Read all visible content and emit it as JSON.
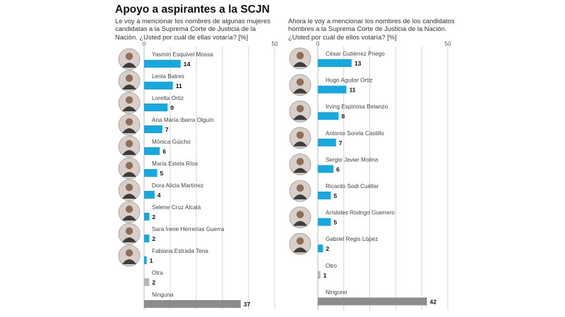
{
  "title": "Apoyo a aspirantes a la SCJN",
  "colors": {
    "bar": "#16a9df",
    "bar_other": "#b6b6b6",
    "bar_none": "#8c8c8c",
    "grid": "#cccccc"
  },
  "chart_data": [
    {
      "type": "bar",
      "orientation": "horizontal",
      "question": "Le voy a mencionar los nombres de algunas mujeres candidatas a la Suprema Corte de Justicia de la Nación. ¿Usted por cuál de ellas votaría? [%]",
      "axis_ticks": [
        "0",
        "50"
      ],
      "xlim": [
        0,
        50
      ],
      "grid": true,
      "categories": [
        "Yasmín Esquivel Mossa",
        "Lenia Batres",
        "Loretta Ortiz",
        "Ana María Ibarra Olguín",
        "Mónica Güicho",
        "María Estela Ríos",
        "Dora Alicia Martínez",
        "Selene Cruz Alcalá",
        "Sara Irene Herrerías Guerra",
        "Fabiana Estrada Tena",
        "Otra",
        "Ninguna"
      ],
      "values": [
        14,
        11,
        9,
        7,
        6,
        5,
        4,
        2,
        2,
        1,
        2,
        37
      ],
      "value_labels": [
        "14",
        "11",
        "9",
        "7",
        "6",
        "5",
        "4",
        "2",
        "2",
        "1",
        "2",
        "37"
      ],
      "photo": [
        true,
        true,
        true,
        true,
        true,
        true,
        true,
        true,
        true,
        true,
        false,
        false
      ],
      "kind": [
        "c",
        "c",
        "c",
        "c",
        "c",
        "c",
        "c",
        "c",
        "c",
        "c",
        "other",
        "none"
      ]
    },
    {
      "type": "bar",
      "orientation": "horizontal",
      "question": "Ahora le voy a mencionar los nombres de los candidatos hombres a la Suprema Corte de Justicia de la Nación. ¿Usted por cuál de ellos votaría? [%]",
      "axis_ticks": [
        "0",
        "50"
      ],
      "xlim": [
        0,
        50
      ],
      "grid": true,
      "categories": [
        "César Gutiérrez Priego",
        "Hugo Aguilar Ortiz",
        "Irving Espinosa Betanzo",
        "Antonio Sorela Castillo",
        "Sergio Javier Molina",
        "Ricardo Sodi Cuéllar",
        "Arístides Rodrigo Guerrero",
        "Gabriel Regis López",
        "Otro",
        "Ninguno"
      ],
      "values": [
        13,
        11,
        8,
        7,
        6,
        5,
        5,
        2,
        1,
        42
      ],
      "value_labels": [
        "13",
        "11",
        "8",
        "7",
        "6",
        "5",
        "5",
        "2",
        "1",
        "42"
      ],
      "photo": [
        true,
        true,
        true,
        true,
        true,
        true,
        true,
        true,
        false,
        false
      ],
      "kind": [
        "c",
        "c",
        "c",
        "c",
        "c",
        "c",
        "c",
        "c",
        "other",
        "none"
      ]
    }
  ]
}
